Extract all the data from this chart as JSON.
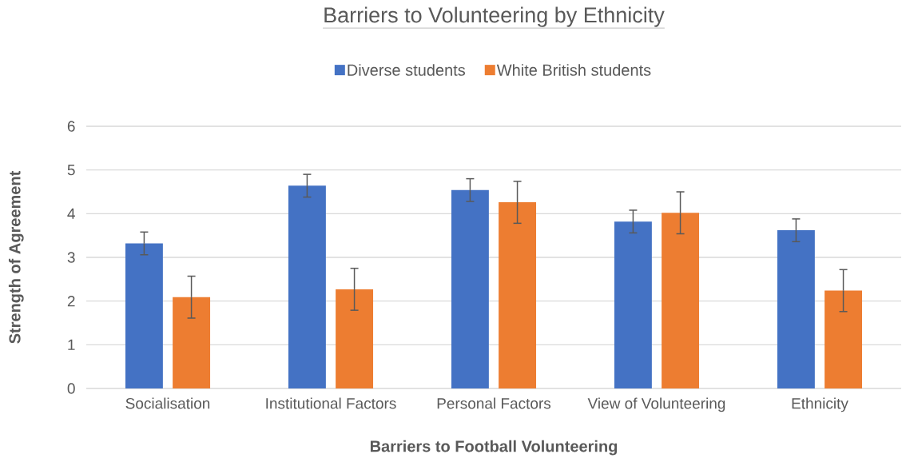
{
  "chart_data": {
    "type": "bar",
    "title": "Barriers to Volunteering by Ethnicity",
    "xlabel": "Barriers to Football Volunteering",
    "ylabel": "Strength of Agreement",
    "categories": [
      "Socialisation",
      "Institutional Factors",
      "Personal Factors",
      "View of Volunteering",
      "Ethnicity"
    ],
    "series": [
      {
        "name": "Diverse students",
        "color": "#4472c4",
        "values": [
          3.32,
          4.64,
          4.54,
          3.82,
          3.62
        ],
        "errors": [
          0.26,
          0.26,
          0.26,
          0.26,
          0.26
        ]
      },
      {
        "name": "White British students",
        "color": "#ed7d31",
        "values": [
          2.09,
          2.27,
          4.26,
          4.02,
          2.24
        ],
        "errors": [
          0.48,
          0.48,
          0.48,
          0.48,
          0.48
        ]
      }
    ],
    "ylim": [
      0,
      6
    ],
    "yticks": [
      0,
      1,
      2,
      3,
      4,
      5,
      6
    ],
    "grid": "y",
    "legend": "top"
  }
}
